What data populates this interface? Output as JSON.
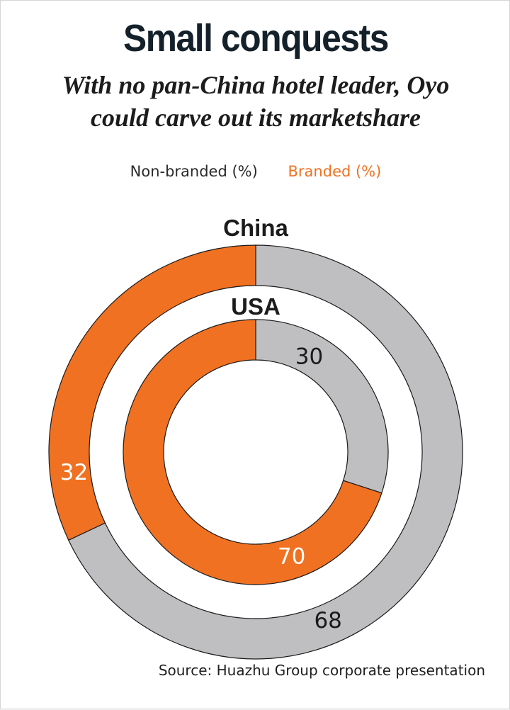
{
  "title": "Small conquests",
  "subtitle_lines": [
    "With no pan-China hotel leader, Oyo",
    "could carve out its marketshare"
  ],
  "legend": {
    "non_branded": "Non-branded (%)",
    "branded": "Branded (%)"
  },
  "colors": {
    "non_branded": "#bfbfc2",
    "branded": "#f07122"
  },
  "source": "Source: Huazhu Group corporate presentation",
  "chart_data": {
    "type": "pie",
    "subtype": "nested-donut",
    "series": [
      {
        "name": "China",
        "ring": "outer",
        "slices": [
          {
            "label": "Non-branded (%)",
            "value": 68
          },
          {
            "label": "Branded (%)",
            "value": 32
          }
        ]
      },
      {
        "name": "USA",
        "ring": "inner",
        "slices": [
          {
            "label": "Non-branded (%)",
            "value": 30
          },
          {
            "label": "Branded (%)",
            "value": 70
          }
        ]
      }
    ],
    "legend_position": "top"
  }
}
